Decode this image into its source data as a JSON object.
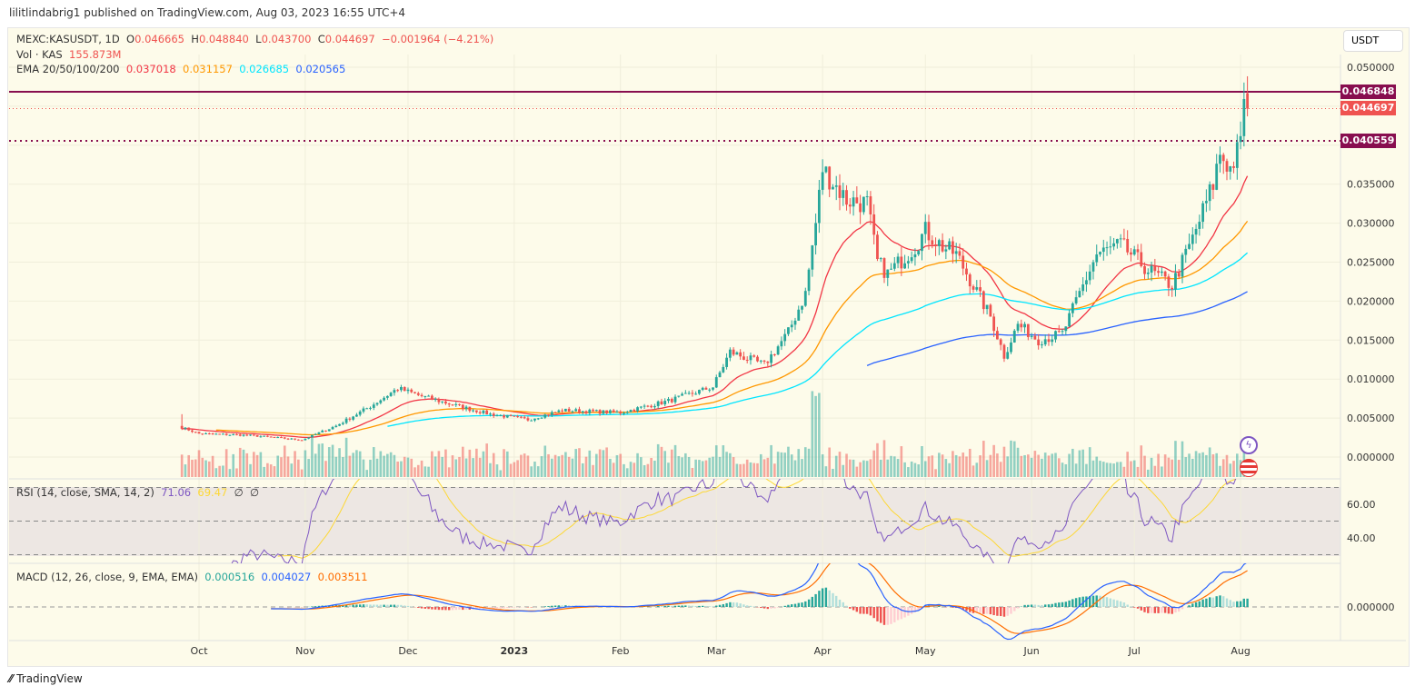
{
  "header": {
    "published": "lilitlindabrig1 published on TradingView.com, Aug 03, 2023 16:55 UTC+4"
  },
  "legend": {
    "symbol": "MEXC:KASUSDT, 1D",
    "o_label": "O",
    "o": "0.046665",
    "h_label": "H",
    "h": "0.048840",
    "l_label": "L",
    "l": "0.043700",
    "c_label": "C",
    "c": "0.044697",
    "change": "−0.001964 (−4.21%)",
    "vol_label": "Vol · KAS",
    "vol": "155.873M",
    "ema_label": "EMA 20/50/100/200",
    "ema20": "0.037018",
    "ema50": "0.031157",
    "ema100": "0.026685",
    "ema200": "0.020565",
    "rsi_label": "RSI (14, close, SMA, 14, 2)",
    "rsi": "71.06",
    "rsi_sma": "69.47",
    "rsi_x1": "∅",
    "rsi_x2": "∅",
    "macd_label": "MACD (12, 26, close, 9, EMA, EMA)",
    "macd_hist": "0.000516",
    "macd": "0.004027",
    "macd_signal": "0.003511"
  },
  "currency": "USDT",
  "colors": {
    "up": "#26a69a",
    "down": "#ef5350",
    "ema20": "#f23645",
    "ema50": "#ff9800",
    "ema100": "#00e5ff",
    "ema200": "#2962ff",
    "rsi": "#7e57c2",
    "rsi_sma": "#fdd835",
    "macd": "#2962ff",
    "signal": "#ff6d00",
    "level": "#880e4f"
  },
  "price_tags": {
    "resistance": "0.046848",
    "last": "0.044697",
    "support": "0.040559"
  },
  "watermark": "TradingView",
  "chart_data": {
    "type": "candlestick",
    "symbol": "KASUSDT",
    "interval": "1D",
    "price_ticks": [
      "0.050000",
      "0.045000",
      "0.040000",
      "0.035000",
      "0.030000",
      "0.025000",
      "0.020000",
      "0.015000",
      "0.010000",
      "0.005000",
      "0.000000"
    ],
    "price_tick_values": [
      0.05,
      0.045,
      0.04,
      0.035,
      0.03,
      0.025,
      0.02,
      0.015,
      0.01,
      0.005,
      0
    ],
    "ylim": [
      0,
      0.05
    ],
    "x_ticks": [
      {
        "label": "Oct",
        "date": "2022-10-01"
      },
      {
        "label": "Nov",
        "date": "2022-11-01"
      },
      {
        "label": "Dec",
        "date": "2022-12-01"
      },
      {
        "label": "2023",
        "date": "2023-01-01"
      },
      {
        "label": "Feb",
        "date": "2023-02-01"
      },
      {
        "label": "Mar",
        "date": "2023-03-01"
      },
      {
        "label": "Apr",
        "date": "2023-04-01"
      },
      {
        "label": "May",
        "date": "2023-05-01"
      },
      {
        "label": "Jun",
        "date": "2023-06-01"
      },
      {
        "label": "Jul",
        "date": "2023-07-01"
      },
      {
        "label": "Aug",
        "date": "2023-08-01"
      }
    ],
    "horizontal_levels": [
      0.046848,
      0.040559
    ],
    "rsi_ticks": [
      "60.00",
      "40.00"
    ],
    "macd_ticks": [
      "0.000000"
    ],
    "approx_closes": [
      [
        "2022-09-26",
        0.0038
      ],
      [
        "2022-10-01",
        0.003
      ],
      [
        "2022-10-15",
        0.0028
      ],
      [
        "2022-10-31",
        0.0022
      ],
      [
        "2022-11-10",
        0.004
      ],
      [
        "2022-11-20",
        0.0065
      ],
      [
        "2022-11-28",
        0.0088
      ],
      [
        "2022-12-05",
        0.0078
      ],
      [
        "2022-12-15",
        0.0066
      ],
      [
        "2022-12-25",
        0.0055
      ],
      [
        "2023-01-05",
        0.0048
      ],
      [
        "2023-01-15",
        0.006
      ],
      [
        "2023-02-01",
        0.0057
      ],
      [
        "2023-02-15",
        0.0072
      ],
      [
        "2023-02-28",
        0.009
      ],
      [
        "2023-03-05",
        0.0135
      ],
      [
        "2023-03-15",
        0.0118
      ],
      [
        "2023-03-22",
        0.016
      ],
      [
        "2023-03-27",
        0.021
      ],
      [
        "2023-03-30",
        0.03
      ],
      [
        "2023-04-01",
        0.037
      ],
      [
        "2023-04-08",
        0.033
      ],
      [
        "2023-04-14",
        0.0325
      ],
      [
        "2023-04-17",
        0.025
      ],
      [
        "2023-04-20",
        0.0235
      ],
      [
        "2023-04-28",
        0.027
      ],
      [
        "2023-05-01",
        0.029
      ],
      [
        "2023-05-06",
        0.027
      ],
      [
        "2023-05-10",
        0.026
      ],
      [
        "2023-05-15",
        0.022
      ],
      [
        "2023-05-20",
        0.018
      ],
      [
        "2023-05-24",
        0.013
      ],
      [
        "2023-05-28",
        0.017
      ],
      [
        "2023-06-03",
        0.015
      ],
      [
        "2023-06-10",
        0.0158
      ],
      [
        "2023-06-15",
        0.021
      ],
      [
        "2023-06-20",
        0.026
      ],
      [
        "2023-06-27",
        0.0272
      ],
      [
        "2023-07-05",
        0.024
      ],
      [
        "2023-07-12",
        0.022
      ],
      [
        "2023-07-18",
        0.028
      ],
      [
        "2023-07-24",
        0.035
      ],
      [
        "2023-07-26",
        0.039
      ],
      [
        "2023-07-29",
        0.037
      ],
      [
        "2023-08-01",
        0.04
      ],
      [
        "2023-08-02",
        0.0466
      ],
      [
        "2023-08-03",
        0.044697
      ]
    ]
  }
}
